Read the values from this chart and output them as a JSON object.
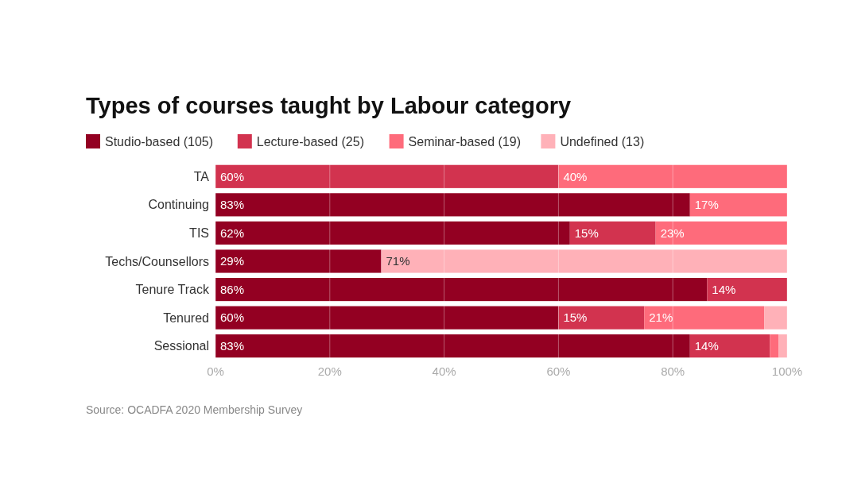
{
  "chart_data": {
    "type": "bar",
    "orientation": "horizontal",
    "stacked": true,
    "title": "Types of courses taught by Labour category",
    "categories": [
      "TA",
      "Continuing",
      "TIS",
      "Techs/Counsellors",
      "Tenure Track",
      "Tenured",
      "Sessional"
    ],
    "series": [
      {
        "name": "Studio-based (105)",
        "color": "#930022",
        "values": [
          0,
          83,
          62,
          29,
          86,
          60,
          83
        ],
        "value_labels": [
          null,
          "83%",
          "62%",
          "29%",
          "86%",
          "60%",
          "83%"
        ]
      },
      {
        "name": "Lecture-based (25)",
        "color": "#d2334f",
        "values": [
          60,
          0,
          15,
          0,
          14,
          15,
          14
        ],
        "value_labels": [
          "60%",
          null,
          "15%",
          null,
          "14%",
          "15%",
          "14%"
        ]
      },
      {
        "name": "Seminar-based (19)",
        "color": "#fe6b7b",
        "values": [
          40,
          17,
          23,
          0,
          0,
          21,
          1.5
        ],
        "value_labels": [
          "40%",
          "17%",
          "23%",
          null,
          null,
          "21%",
          null
        ]
      },
      {
        "name": "Undefined (13)",
        "color": "#ffb1b8",
        "values": [
          0,
          0,
          0,
          71,
          0,
          4,
          1.5
        ],
        "value_labels": [
          null,
          null,
          null,
          "71%",
          null,
          null,
          null
        ]
      }
    ],
    "xlim": [
      0,
      100
    ],
    "xticks": [
      {
        "value": 0,
        "label": "0%"
      },
      {
        "value": 20,
        "label": "20%"
      },
      {
        "value": 40,
        "label": "40%"
      },
      {
        "value": 60,
        "label": "60%"
      },
      {
        "value": 80,
        "label": "80%"
      },
      {
        "value": 100,
        "label": "100%"
      }
    ],
    "grid": "x",
    "legend": "top left",
    "annotations": [
      "Source: OCADFA 2020 Membership Survey"
    ]
  }
}
